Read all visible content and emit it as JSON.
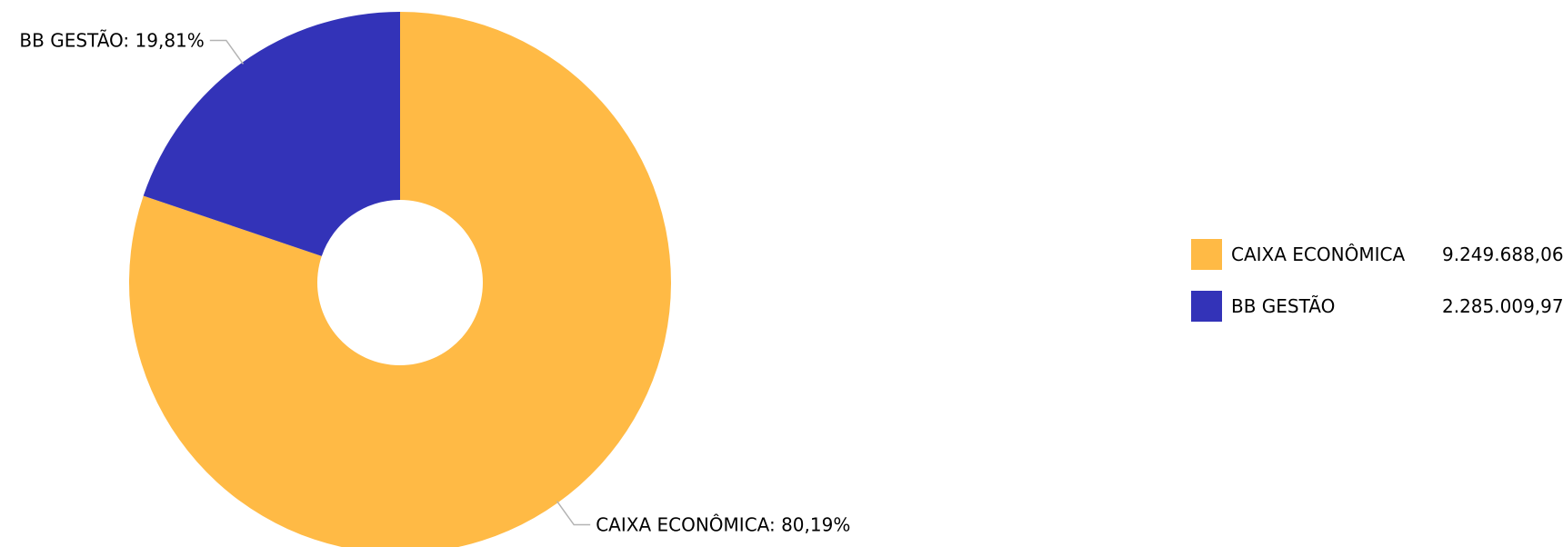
{
  "chart_data": {
    "type": "pie",
    "variant": "donut",
    "categories": [
      "CAIXA ECONÔMICA",
      "BB GESTÃO"
    ],
    "values": [
      9249688.06,
      2285009.97
    ],
    "value_labels": [
      "9.249.688,06",
      "2.285.009,97"
    ],
    "percentages": [
      80.19,
      19.81
    ],
    "slice_labels": [
      "CAIXA ECONÔMICA: 80,19%",
      "BB GESTÃO: 19,81%"
    ],
    "colors": [
      "#FFBA45",
      "#3333B8"
    ],
    "legend_position": "right"
  },
  "legend": {
    "items": [
      {
        "label": "CAIXA ECONÔMICA",
        "value": "9.249.688,06",
        "color": "#FFBA45"
      },
      {
        "label": "BB GESTÃO",
        "value": "2.285.009,97",
        "color": "#3333B8"
      }
    ]
  }
}
